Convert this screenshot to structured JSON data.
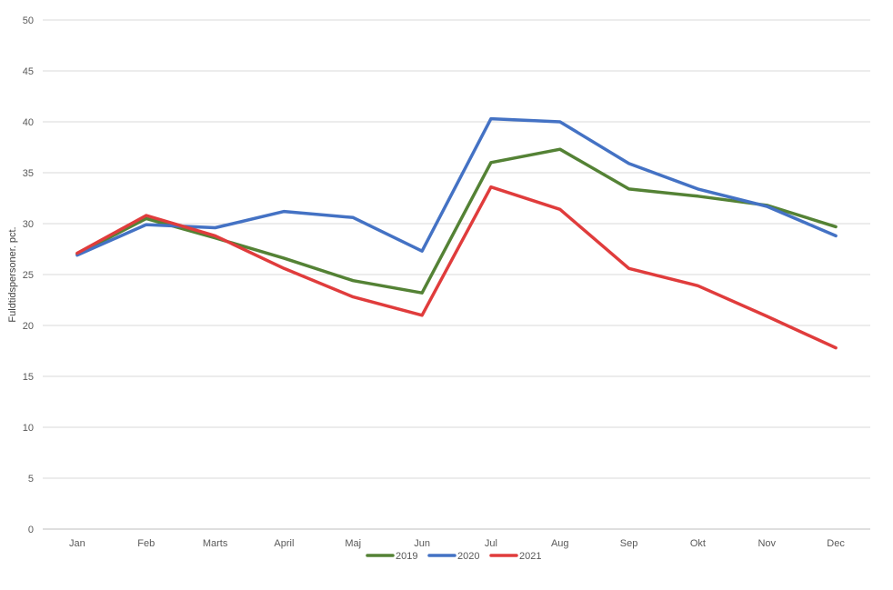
{
  "chart_data": {
    "type": "line",
    "title": "",
    "xlabel": "",
    "ylabel": "Fuldtidspersoner. pct.",
    "ylim": [
      0,
      50
    ],
    "yticks": [
      0,
      5,
      10,
      15,
      20,
      25,
      30,
      35,
      40,
      45,
      50
    ],
    "grid": "horizontal",
    "legend_position": "bottom",
    "categories": [
      "Jan",
      "Feb",
      "Marts",
      "April",
      "Maj",
      "Jun",
      "Jul",
      "Aug",
      "Sep",
      "Okt",
      "Nov",
      "Dec"
    ],
    "series": [
      {
        "name": "2019",
        "color": "#548235",
        "values": [
          27.0,
          30.5,
          28.6,
          26.6,
          24.4,
          23.2,
          36.0,
          37.3,
          33.4,
          32.7,
          31.8,
          29.7
        ]
      },
      {
        "name": "2020",
        "color": "#4472C4",
        "values": [
          26.9,
          29.9,
          29.6,
          31.2,
          30.6,
          27.3,
          40.3,
          40.0,
          35.9,
          33.4,
          31.7,
          28.8
        ]
      },
      {
        "name": "2021",
        "color": "#E03C3C",
        "values": [
          27.1,
          30.8,
          28.8,
          25.6,
          22.8,
          21.0,
          33.6,
          31.4,
          25.6,
          23.9,
          20.9,
          17.8
        ]
      }
    ]
  }
}
